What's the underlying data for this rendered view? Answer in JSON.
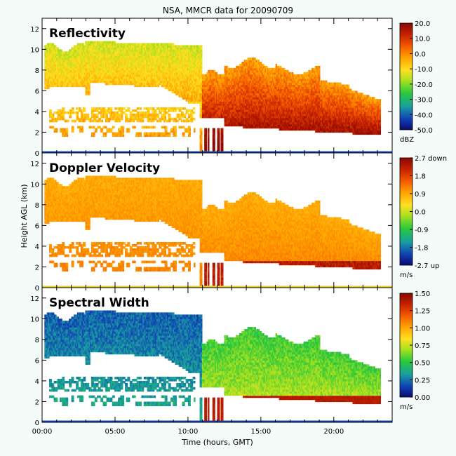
{
  "title": "NSA, MMCR data for 20090709",
  "chart_data": {
    "type": "heatmap",
    "title": "NSA, MMCR data for 20090709",
    "xlabel": "Time (hours, GMT)",
    "ylabel": "Height AGL (km)",
    "x_ticks": [
      "00:00",
      "05:00",
      "10:00",
      "15:00",
      "20:00"
    ],
    "x_tick_hours": [
      0,
      5,
      10,
      15,
      20
    ],
    "xlim": [
      0,
      24
    ],
    "ylim": [
      0,
      13
    ],
    "y_ticks": [
      "0",
      "2",
      "4",
      "6",
      "8",
      "10",
      "12"
    ],
    "y_tick_values": [
      0,
      2,
      4,
      6,
      8,
      10,
      12
    ],
    "panels": [
      {
        "title": "Reflectivity",
        "scale": "refl",
        "colorbar": {
          "labels": [
            "20.0",
            "10.0",
            "0.0",
            "-10.0",
            "-20.0",
            "-30.0",
            "-40.0",
            "-50.0"
          ],
          "unit": "dBZ",
          "range": [
            -50,
            20
          ]
        }
      },
      {
        "title": "Doppler Velocity",
        "scale": "vel",
        "colorbar": {
          "labels": [
            "2.7 down",
            "1.8",
            "0.9",
            "0.0",
            "-0.9",
            "-1.8",
            "-2.7 up"
          ],
          "unit": "m/s",
          "range": [
            -2.7,
            2.7
          ]
        }
      },
      {
        "title": "Spectral Width",
        "scale": "width",
        "colorbar": {
          "labels": [
            "1.50",
            "1.25",
            "1.00",
            "0.75",
            "0.50",
            "0.25",
            "0.00"
          ],
          "unit": "m/s",
          "range": [
            0,
            1.5
          ]
        }
      }
    ]
  }
}
